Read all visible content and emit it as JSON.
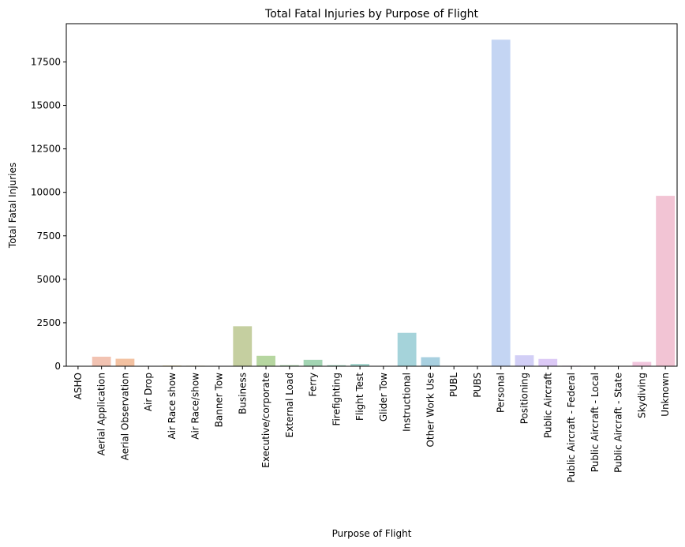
{
  "chart_data": {
    "type": "bar",
    "title": "Total Fatal Injuries by Purpose of Flight",
    "xlabel": "Purpose of Flight",
    "ylabel": "Total Fatal Injuries",
    "ylim": [
      0,
      19700
    ],
    "yticks": [
      0,
      2500,
      5000,
      7500,
      10000,
      12500,
      15000,
      17500
    ],
    "grid": false,
    "categories": [
      "ASHO",
      "Aerial Application",
      "Aerial Observation",
      "Air Drop",
      "Air Race show",
      "Air Race/show",
      "Banner Tow",
      "Business",
      "Executive/corporate",
      "External Load",
      "Ferry",
      "Firefighting",
      "Flight Test",
      "Glider Tow",
      "Instructional",
      "Other Work Use",
      "PUBL",
      "PUBS",
      "Personal",
      "Positioning",
      "Public Aircraft",
      "Public Aircraft - Federal",
      "Public Aircraft - Local",
      "Public Aircraft - State",
      "Skydiving",
      "Unknown"
    ],
    "values": [
      0,
      550,
      430,
      3,
      40,
      30,
      8,
      2300,
      600,
      60,
      370,
      60,
      130,
      10,
      1920,
      520,
      1,
      1,
      18780,
      630,
      420,
      30,
      12,
      20,
      250,
      9800
    ],
    "colors": [
      "#f4c7bb",
      "#f2c3b2",
      "#f3c1a1",
      "#f1d2a0",
      "#efdfa0",
      "#e3dfa0",
      "#d5d9a0",
      "#c5cfa0",
      "#b6d6a0",
      "#a8d4a8",
      "#a3d5b3",
      "#a2d5bf",
      "#a2d4cc",
      "#a2d3d6",
      "#a5d3da",
      "#a8d0e0",
      "#b0ccec",
      "#b8c9f0",
      "#c4d5f3",
      "#d2cff6",
      "#dcc9f6",
      "#e6c9f2",
      "#ecc8ee",
      "#efc6e6",
      "#f1c5dd",
      "#f2c4d4"
    ]
  }
}
